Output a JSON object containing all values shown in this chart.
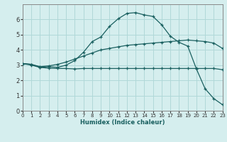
{
  "xlabel": "Humidex (Indice chaleur)",
  "bg_color": "#d5eeee",
  "grid_color": "#b0d8d8",
  "line_color": "#1a6060",
  "xlim": [
    0,
    23
  ],
  "ylim": [
    0,
    7
  ],
  "xticks": [
    0,
    1,
    2,
    3,
    4,
    5,
    6,
    7,
    8,
    9,
    10,
    11,
    12,
    13,
    14,
    15,
    16,
    17,
    18,
    19,
    20,
    21,
    22,
    23
  ],
  "yticks": [
    0,
    1,
    2,
    3,
    4,
    5,
    6
  ],
  "line1_x": [
    0,
    1,
    2,
    3,
    4,
    5,
    6,
    7,
    8,
    9,
    10,
    11,
    12,
    13,
    14,
    15,
    16,
    17,
    18,
    19,
    20,
    21,
    22,
    23
  ],
  "line1_y": [
    3.1,
    3.05,
    2.85,
    2.9,
    2.85,
    3.0,
    3.3,
    3.85,
    4.55,
    4.85,
    5.55,
    6.05,
    6.4,
    6.45,
    6.3,
    6.2,
    5.65,
    4.9,
    4.5,
    4.25,
    2.75,
    1.45,
    0.8,
    0.4
  ],
  "line2_x": [
    0,
    1,
    2,
    3,
    4,
    5,
    6,
    7,
    8,
    9,
    10,
    11,
    12,
    13,
    14,
    15,
    16,
    17,
    18,
    19,
    20,
    21,
    22,
    23
  ],
  "line2_y": [
    3.1,
    3.0,
    2.85,
    2.8,
    2.78,
    2.78,
    2.75,
    2.78,
    2.78,
    2.78,
    2.78,
    2.78,
    2.78,
    2.78,
    2.78,
    2.78,
    2.78,
    2.78,
    2.78,
    2.78,
    2.78,
    2.78,
    2.78,
    2.7
  ],
  "line3_x": [
    0,
    1,
    2,
    3,
    4,
    5,
    6,
    7,
    8,
    9,
    10,
    11,
    12,
    13,
    14,
    15,
    16,
    17,
    18,
    19,
    20,
    21,
    22,
    23
  ],
  "line3_y": [
    3.1,
    3.05,
    2.9,
    2.95,
    3.05,
    3.2,
    3.4,
    3.6,
    3.8,
    4.0,
    4.1,
    4.2,
    4.3,
    4.35,
    4.4,
    4.45,
    4.5,
    4.55,
    4.6,
    4.65,
    4.6,
    4.55,
    4.45,
    4.1
  ]
}
